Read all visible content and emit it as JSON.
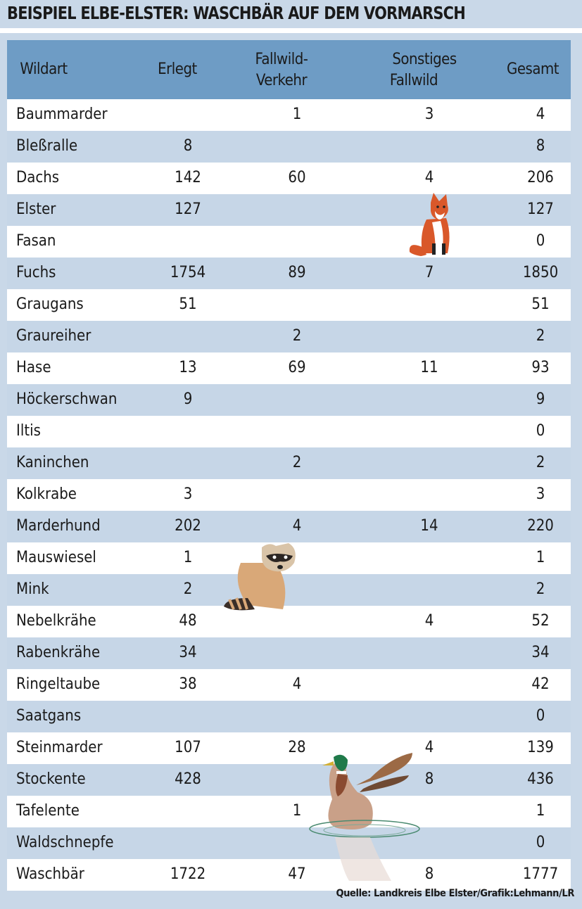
{
  "title": "BEISPIEL ELBE-ELSTER: WASCHBÄR AUF DEM VORMARSCH",
  "source": "Quelle: Landkreis Elbe Elster/Grafik:Lehmann/LR",
  "colors": {
    "header": "#6e9cc5",
    "row_alt": "#c6d6e7",
    "background": "#c9d8e8"
  },
  "illustrations": [
    "fox",
    "raccoon",
    "mallard-duck"
  ],
  "chart_data": {
    "type": "table",
    "columns": [
      "Wildart",
      "Erlegt",
      "Fallwild-\nVerkehr",
      "Sonstiges\nFallwild",
      "Gesamt"
    ],
    "header": {
      "c0": "Wildart",
      "c1": "Erlegt",
      "c2a": "Fallwild-",
      "c2b": "Verkehr",
      "c3a": "Sonstiges",
      "c3b": "Fallwild",
      "c4": "Gesamt"
    },
    "rows": [
      [
        "Baummarder",
        "",
        "1",
        "3",
        "4"
      ],
      [
        "Bleßralle",
        "8",
        "",
        "",
        "8"
      ],
      [
        "Dachs",
        "142",
        "60",
        "4",
        "206"
      ],
      [
        "Elster",
        "127",
        "",
        "",
        "127"
      ],
      [
        "Fasan",
        "",
        "",
        "",
        "0"
      ],
      [
        "Fuchs",
        "1754",
        "89",
        "7",
        "1850"
      ],
      [
        "Graugans",
        "51",
        "",
        "",
        "51"
      ],
      [
        "Graureiher",
        "",
        "2",
        "",
        "2"
      ],
      [
        "Hase",
        "13",
        "69",
        "11",
        "93"
      ],
      [
        "Höckerschwan",
        "9",
        "",
        "",
        "9"
      ],
      [
        "Iltis",
        "",
        "",
        "",
        "0"
      ],
      [
        "Kaninchen",
        "",
        "2",
        "",
        "2"
      ],
      [
        "Kolkrabe",
        "3",
        "",
        "",
        "3"
      ],
      [
        "Marderhund",
        "202",
        "4",
        "14",
        "220"
      ],
      [
        "Mauswiesel",
        "1",
        "",
        "",
        "1"
      ],
      [
        "Mink",
        "2",
        "",
        "",
        "2"
      ],
      [
        "Nebelkrähe",
        "48",
        "",
        "4",
        "52"
      ],
      [
        "Rabenkrähe",
        "34",
        "",
        "",
        "34"
      ],
      [
        "Ringeltaube",
        "38",
        "4",
        "",
        "42"
      ],
      [
        "Saatgans",
        "",
        "",
        "",
        "0"
      ],
      [
        "Steinmarder",
        "107",
        "28",
        "4",
        "139"
      ],
      [
        "Stockente",
        "428",
        "",
        "8",
        "436"
      ],
      [
        "Tafelente",
        "",
        "1",
        "",
        "1"
      ],
      [
        "Waldschnepfe",
        "",
        "",
        "",
        "0"
      ],
      [
        "Waschbär",
        "1722",
        "47",
        "8",
        "1777"
      ]
    ]
  }
}
